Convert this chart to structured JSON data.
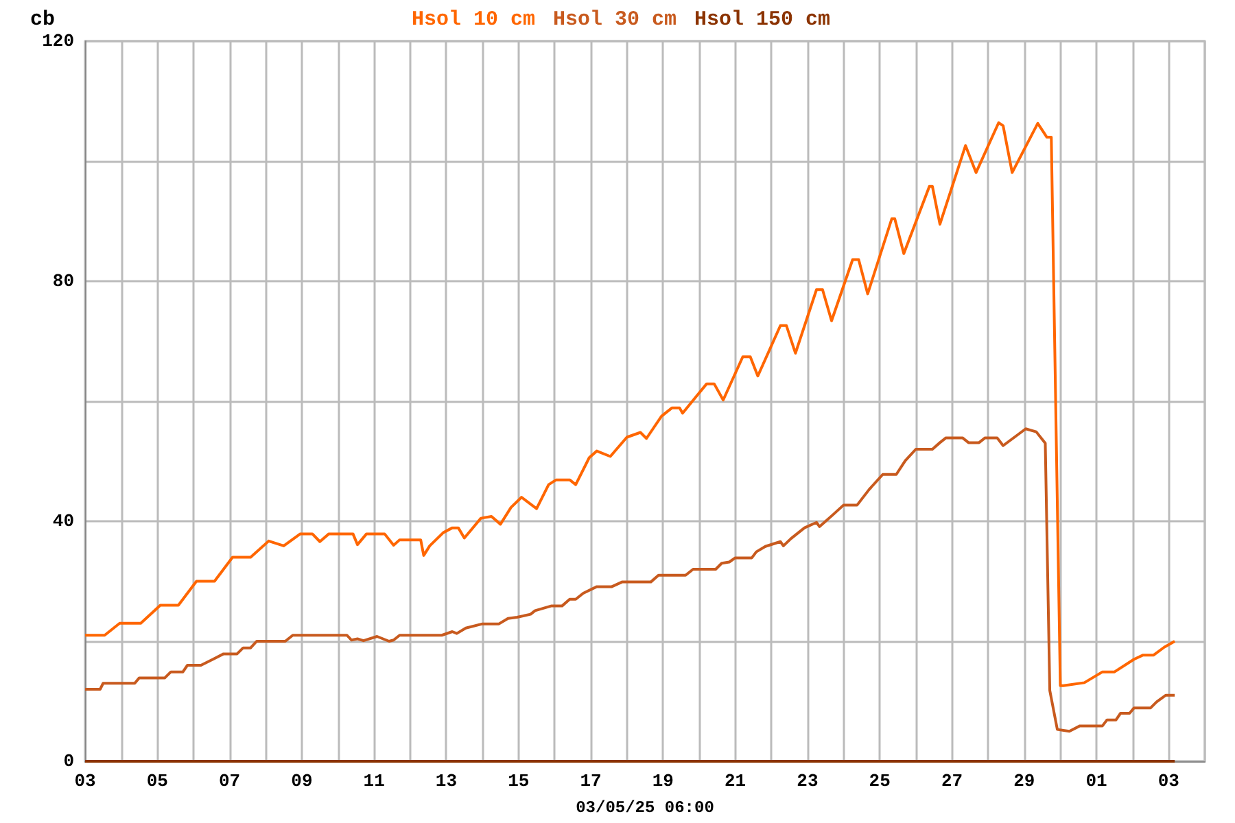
{
  "chart_data": {
    "type": "line",
    "ylabel": "cb",
    "xlabel": "03/05/25 06:00",
    "legend": "top",
    "grid": true,
    "line_style": "solid",
    "xlim": [
      "--04-03",
      "--05-04"
    ],
    "ylim": [
      0,
      120
    ],
    "yticks": [
      0,
      {
        "value": 20,
        "label": null
      },
      40,
      {
        "value": 60,
        "label": null
      },
      80,
      {
        "value": 100,
        "label": null
      },
      120
    ],
    "xticks": [
      {
        "value": "--04-03",
        "label": "03"
      },
      {
        "value": "--04-04",
        "label": null
      },
      {
        "value": "--04-05",
        "label": "05"
      },
      {
        "value": "--04-06",
        "label": null
      },
      {
        "value": "--04-07",
        "label": "07"
      },
      {
        "value": "--04-08",
        "label": null
      },
      {
        "value": "--04-09",
        "label": "09"
      },
      {
        "value": "--04-10",
        "label": null
      },
      {
        "value": "--04-11",
        "label": "11"
      },
      {
        "value": "--04-12",
        "label": null
      },
      {
        "value": "--04-13",
        "label": "13"
      },
      {
        "value": "--04-14",
        "label": null
      },
      {
        "value": "--04-15",
        "label": "15"
      },
      {
        "value": "--04-16",
        "label": null
      },
      {
        "value": "--04-17",
        "label": "17"
      },
      {
        "value": "--04-18",
        "label": null
      },
      {
        "value": "--04-19",
        "label": "19"
      },
      {
        "value": "--04-20",
        "label": null
      },
      {
        "value": "--04-21",
        "label": "21"
      },
      {
        "value": "--04-22",
        "label": null
      },
      {
        "value": "--04-23",
        "label": "23"
      },
      {
        "value": "--04-24",
        "label": null
      },
      {
        "value": "--04-25",
        "label": "25"
      },
      {
        "value": "--04-26",
        "label": null
      },
      {
        "value": "--04-27",
        "label": "27"
      },
      {
        "value": "--04-28",
        "label": null
      },
      {
        "value": "--04-29",
        "label": "29"
      },
      {
        "value": "--04-30",
        "label": null
      },
      {
        "value": "--05-01",
        "label": "01"
      },
      {
        "value": "--05-02",
        "label": null
      },
      {
        "value": "--05-03",
        "label": "03"
      },
      {
        "value": "--05-04",
        "label": null
      }
    ],
    "series": [
      {
        "name": "Hsol 10 cm",
        "color": "#ff6600",
        "x": [
          "--04-03T00:00",
          "--04-03T13:00",
          "--04-03T23:00",
          "--04-04T13:00",
          "--04-05T02:00",
          "--04-05T14:00",
          "--04-06T02:00",
          "--04-06T14:00",
          "--04-07T02:00",
          "--04-07T14:00",
          "--04-08T02:00",
          "--04-08T12:00",
          "--04-08T23:00",
          "--04-09T07:00",
          "--04-09T12:00",
          "--04-09T18:00",
          "--04-10T10:00",
          "--04-10T13:00",
          "--04-10T19:00",
          "--04-11T07:00",
          "--04-11T13:00",
          "--04-11T17:00",
          "--04-12T07:00",
          "--04-12T09:00",
          "--04-12T13:00",
          "--04-12T22:00",
          "--04-13T04:00",
          "--04-13T08:00",
          "--04-13T12:00",
          "--04-13T23:00",
          "--04-14T06:00",
          "--04-14T12:00",
          "--04-14T19:00",
          "--04-15T02:00",
          "--04-15T12:00",
          "--04-15T20:00",
          "--04-16T01:00",
          "--04-16T10:00",
          "--04-16T14:00",
          "--04-16T23:00",
          "--04-17T04:00",
          "--04-17T13:00",
          "--04-18T00:00",
          "--04-18T09:00",
          "--04-18T13:00",
          "--04-18T23:00",
          "--04-19T06:00",
          "--04-19T11:00",
          "--04-19T13:00",
          "--04-20T05:00",
          "--04-20T10:00",
          "--04-20T16:00",
          "--04-21T05:00",
          "--04-21T10:00",
          "--04-21T15:00",
          "--04-22T06:00",
          "--04-22T10:00",
          "--04-22T16:00",
          "--04-23T06:00",
          "--04-23T10:00",
          "--04-23T16:00",
          "--04-24T06:00",
          "--04-24T10:00",
          "--04-24T16:00",
          "--04-25T08:00",
          "--04-25T10:00",
          "--04-25T16:00",
          "--04-26T09:00",
          "--04-26T11:00",
          "--04-26T16:00",
          "--04-27T09:00",
          "--04-27T16:00",
          "--04-28T07:00",
          "--04-28T10:00",
          "--04-28T16:00",
          "--04-29T09:00",
          "--04-29T15:00",
          "--04-29T18:00",
          "--04-30T00:00",
          "--04-30T02:00",
          "--04-30T16:00",
          "--05-01T04:00",
          "--05-01T12:00",
          "--05-02T01:00",
          "--05-02T07:00",
          "--05-02T14:00",
          "--05-02T21:00",
          "--05-03T04:00"
        ],
        "values": [
          21,
          21,
          23,
          23,
          26,
          26,
          30,
          30,
          34,
          34,
          36.7,
          35.9,
          37.9,
          37.9,
          36.6,
          37.9,
          37.9,
          36.1,
          37.9,
          37.9,
          36,
          36.9,
          36.9,
          34.3,
          35.9,
          38.1,
          38.9,
          38.9,
          37.2,
          40.5,
          40.8,
          39.5,
          42.3,
          44,
          42.1,
          46.1,
          46.9,
          46.9,
          46.1,
          50.6,
          51.7,
          50.8,
          54,
          54.8,
          53.8,
          57.5,
          58.9,
          58.9,
          58,
          62.9,
          62.9,
          60.2,
          67.4,
          67.4,
          64.2,
          72.6,
          72.6,
          68,
          78.6,
          78.6,
          73.4,
          83.6,
          83.6,
          77.9,
          90.4,
          90.4,
          84.6,
          95.8,
          95.8,
          89.5,
          102.6,
          98.1,
          106.4,
          105.9,
          98.1,
          106.3,
          104,
          104,
          12.6,
          12.6,
          13.1,
          14.9,
          14.9,
          17,
          17.7,
          17.7,
          19,
          20
        ]
      },
      {
        "name": "Hsol 30 cm",
        "color": "#c85a1e",
        "x": [
          "--04-03T00:00",
          "--04-03T10:00",
          "--04-03T12:00",
          "--04-04T09:00",
          "--04-04T12:00",
          "--04-05T05:00",
          "--04-05T09:00",
          "--04-05T17:00",
          "--04-05T20:00",
          "--04-06T05:00",
          "--04-06T13:00",
          "--04-06T20:00",
          "--04-07T05:00",
          "--04-07T09:00",
          "--04-07T14:00",
          "--04-07T18:00",
          "--04-08T13:00",
          "--04-08T18:00",
          "--04-10T06:00",
          "--04-10T09:00",
          "--04-10T13:00",
          "--04-10T17:00",
          "--04-11T02:00",
          "--04-11T10:00",
          "--04-11T13:00",
          "--04-11T17:00",
          "--04-12T21:00",
          "--04-13T04:00",
          "--04-13T07:00",
          "--04-13T13:00",
          "--04-14T00:00",
          "--04-14T11:00",
          "--04-14T17:00",
          "--04-14T23:00",
          "--04-15T08:00",
          "--04-15T11:00",
          "--04-15T22:00",
          "--04-16T05:00",
          "--04-16T10:00",
          "--04-16T14:00",
          "--04-16T19:00",
          "--04-17T04:00",
          "--04-17T14:00",
          "--04-17T21:00",
          "--04-18T16:00",
          "--04-18T21:00",
          "--04-19T15:00",
          "--04-19T20:00",
          "--04-20T11:00",
          "--04-20T15:00",
          "--04-20T20:00",
          "--04-21T00:00",
          "--04-21T11:00",
          "--04-21T14:00",
          "--04-21T20:00",
          "--04-22T06:00",
          "--04-22T08:00",
          "--04-22T13:00",
          "--04-22T22:00",
          "--04-23T06:00",
          "--04-23T08:00",
          "--04-23T17:00",
          "--04-24T00:00",
          "--04-24T09:00",
          "--04-24T17:00",
          "--04-25T02:00",
          "--04-25T11:00",
          "--04-25T17:00",
          "--04-26T00:00",
          "--04-26T11:00",
          "--04-26T16:00",
          "--04-26T20:00",
          "--04-27T07:00",
          "--04-27T11:00",
          "--04-27T18:00",
          "--04-27T22:00",
          "--04-28T06:00",
          "--04-28T10:00",
          "--04-29T01:00",
          "--04-29T08:00",
          "--04-29T14:00",
          "--04-29T17:00",
          "--04-29T22:00",
          "--04-30T06:00",
          "--04-30T13:00",
          "--05-01T04:00",
          "--05-01T07:00",
          "--05-01T13:00",
          "--05-01T16:00",
          "--05-01T22:00",
          "--05-02T01:00",
          "--05-02T12:00",
          "--05-02T16:00",
          "--05-02T22:00",
          "--05-03T04:00"
        ],
        "values": [
          12,
          12,
          13,
          13,
          13.9,
          13.9,
          14.9,
          14.9,
          16,
          16,
          17,
          17.9,
          17.9,
          18.9,
          18.9,
          20,
          20,
          21,
          21,
          20.2,
          20.4,
          20.1,
          20.8,
          20,
          20.2,
          21,
          21,
          21.6,
          21.3,
          22.2,
          22.9,
          22.9,
          23.8,
          24,
          24.5,
          25.1,
          25.9,
          25.9,
          27,
          27,
          28,
          29.1,
          29.1,
          29.9,
          29.9,
          31,
          31,
          32,
          32,
          33,
          33.2,
          33.9,
          33.9,
          34.9,
          35.8,
          36.6,
          35.9,
          37.1,
          38.9,
          39.8,
          39.1,
          41.1,
          42.7,
          42.7,
          45.3,
          47.8,
          47.8,
          50.1,
          52,
          52,
          53.1,
          53.9,
          53.9,
          53.1,
          53.1,
          53.9,
          53.9,
          52.6,
          55.4,
          54.9,
          53,
          11.8,
          5.3,
          5,
          5.9,
          5.9,
          6.9,
          6.9,
          8,
          8,
          8.9,
          8.9,
          9.9,
          11,
          11
        ]
      },
      {
        "name": "Hsol 150 cm",
        "color": "#8b3300",
        "x": [
          "--04-03T00:00",
          "--05-03T04:00"
        ],
        "values": [
          0,
          0
        ]
      }
    ]
  }
}
